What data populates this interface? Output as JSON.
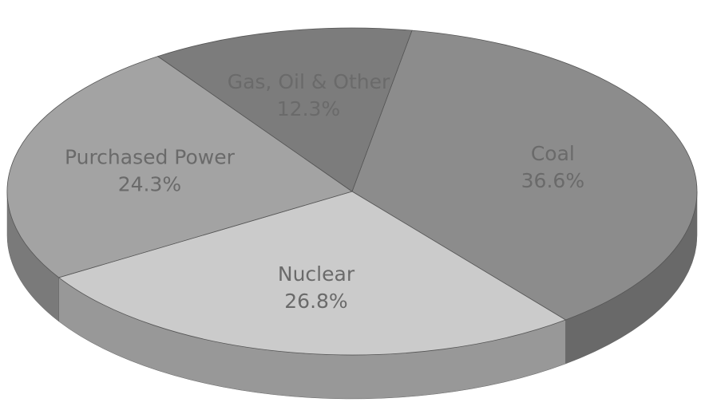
{
  "chart_data": {
    "type": "pie",
    "categories": [
      "Coal",
      "Nuclear",
      "Purchased Power",
      "Gas, Oil & Other"
    ],
    "values": [
      36.6,
      26.8,
      24.3,
      12.3
    ],
    "value_labels": [
      "36.6%",
      "26.8%",
      "24.3%",
      "12.3%"
    ],
    "colors": [
      "#8c8c8c",
      "#cbcbcb",
      "#a3a3a3",
      "#7c7c7c"
    ]
  }
}
